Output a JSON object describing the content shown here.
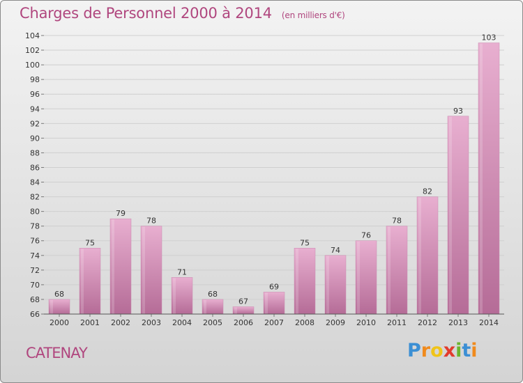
{
  "title": "Charges de Personnel 2000 à 2014",
  "subtitle": "(en milliers d'€)",
  "place": "CATENAY",
  "logo": {
    "letters": [
      "P",
      "r",
      "o",
      "x",
      "i",
      "t",
      "i"
    ],
    "colors": [
      "#3b8fd4",
      "#f08a1c",
      "#f0c419",
      "#e23b2d",
      "#6cb52d",
      "#3b8fd4",
      "#f08a1c"
    ]
  },
  "colors": {
    "bar_light": "#e6a9cc",
    "bar_dark": "#b9709b",
    "title": "#b0467e"
  },
  "chart_data": {
    "type": "bar",
    "categories": [
      "2000",
      "2001",
      "2002",
      "2003",
      "2004",
      "2005",
      "2006",
      "2007",
      "2008",
      "2009",
      "2010",
      "2011",
      "2012",
      "2013",
      "2014"
    ],
    "values": [
      68,
      75,
      79,
      78,
      71,
      68,
      67,
      69,
      75,
      74,
      76,
      78,
      82,
      93,
      103
    ],
    "title": "Charges de Personnel 2000 à 2014",
    "subtitle": "(en milliers d'€)",
    "xlabel": "",
    "ylabel": "",
    "ylim": [
      66,
      104
    ],
    "yticks": [
      66,
      68,
      70,
      72,
      74,
      76,
      78,
      80,
      82,
      84,
      86,
      88,
      90,
      92,
      94,
      96,
      98,
      100,
      102,
      104
    ],
    "grid": true,
    "legend": "none"
  }
}
